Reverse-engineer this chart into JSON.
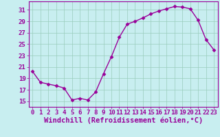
{
  "x": [
    0,
    1,
    2,
    3,
    4,
    5,
    6,
    7,
    8,
    9,
    10,
    11,
    12,
    13,
    14,
    15,
    16,
    17,
    18,
    19,
    20,
    21,
    22,
    23
  ],
  "y": [
    20.2,
    18.3,
    18.0,
    17.7,
    17.3,
    15.2,
    15.5,
    15.2,
    16.6,
    19.8,
    22.8,
    26.2,
    28.5,
    29.0,
    29.6,
    30.3,
    30.8,
    31.2,
    31.6,
    31.5,
    31.2,
    29.2,
    25.8,
    24.0
  ],
  "line_color": "#990099",
  "marker": "D",
  "markersize": 2.5,
  "linewidth": 1.0,
  "xlabel": "Windchill (Refroidissement éolien,°C)",
  "xlim": [
    -0.5,
    23.5
  ],
  "ylim": [
    14.0,
    32.5
  ],
  "yticks": [
    15,
    17,
    19,
    21,
    23,
    25,
    27,
    29,
    31
  ],
  "xticks": [
    0,
    1,
    2,
    3,
    4,
    5,
    6,
    7,
    8,
    9,
    10,
    11,
    12,
    13,
    14,
    15,
    16,
    17,
    18,
    19,
    20,
    21,
    22,
    23
  ],
  "bg_color": "#c8eef0",
  "grid_color": "#99ccbb",
  "line_bg": "#c8eef0",
  "axes_color": "#990099",
  "tick_color": "#990099",
  "xlabel_color": "#990099",
  "xlabel_fontsize": 7.5,
  "tick_fontsize": 6.5
}
